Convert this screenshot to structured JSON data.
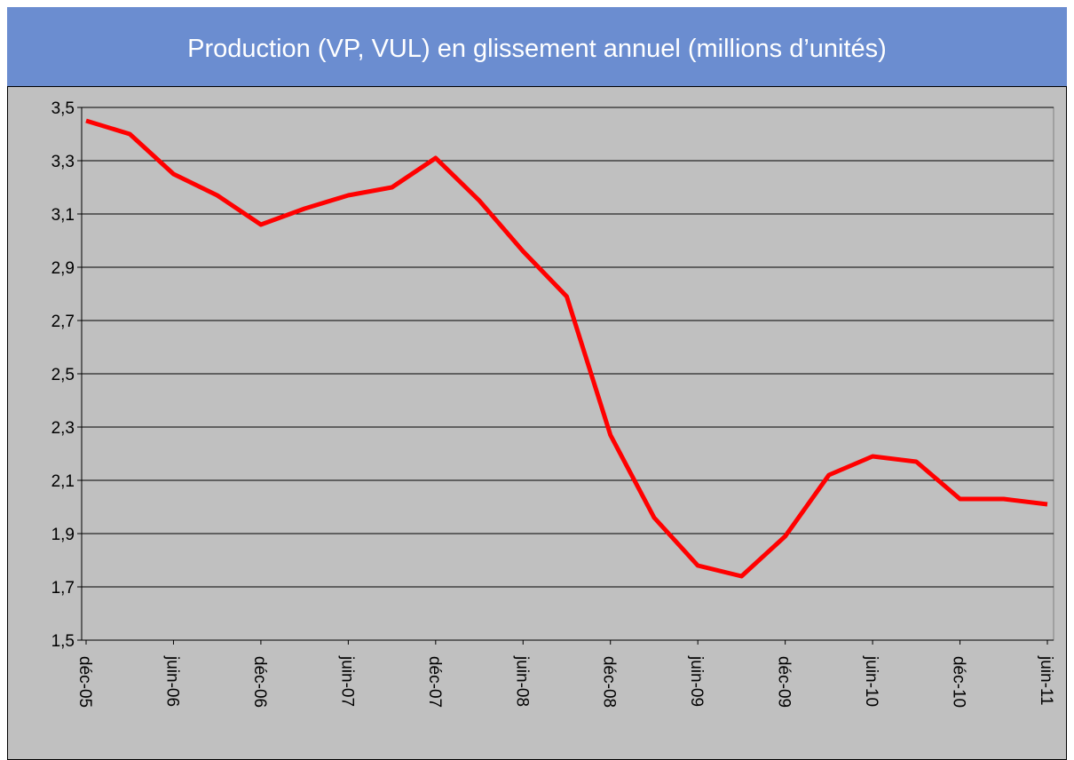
{
  "chart_data": {
    "type": "line",
    "title": "Production  (VP,  VUL) en glissement annuel (millions d’unités)",
    "categories": [
      "déc-05",
      null,
      "juin-06",
      null,
      "déc-06",
      null,
      "juin-07",
      null,
      "déc-07",
      null,
      "juin-08",
      null,
      "déc-08",
      null,
      "juin-09",
      null,
      "déc-09",
      null,
      "juin-10",
      null,
      "déc-10",
      null,
      "juin-11"
    ],
    "series": [
      {
        "name": "Production",
        "color": "#ff0000",
        "values": [
          3.45,
          3.4,
          3.25,
          3.17,
          3.06,
          3.12,
          3.17,
          3.2,
          3.31,
          3.15,
          2.96,
          2.79,
          2.27,
          1.96,
          1.78,
          1.74,
          1.89,
          2.12,
          2.19,
          2.17,
          2.03,
          2.03,
          2.01
        ]
      }
    ],
    "ylim": [
      1.5,
      3.5
    ],
    "yticks": [
      {
        "value": 1.5,
        "label": "1,5"
      },
      {
        "value": 1.7,
        "label": "1,7"
      },
      {
        "value": 1.9,
        "label": "1,9"
      },
      {
        "value": 2.1,
        "label": "2,1"
      },
      {
        "value": 2.3,
        "label": "2,3"
      },
      {
        "value": 2.5,
        "label": "2,5"
      },
      {
        "value": 2.7,
        "label": "2,7"
      },
      {
        "value": 2.9,
        "label": "2,9"
      },
      {
        "value": 3.1,
        "label": "3,1"
      },
      {
        "value": 3.3,
        "label": "3,3"
      },
      {
        "value": 3.5,
        "label": "3,5"
      }
    ],
    "grid": true
  }
}
